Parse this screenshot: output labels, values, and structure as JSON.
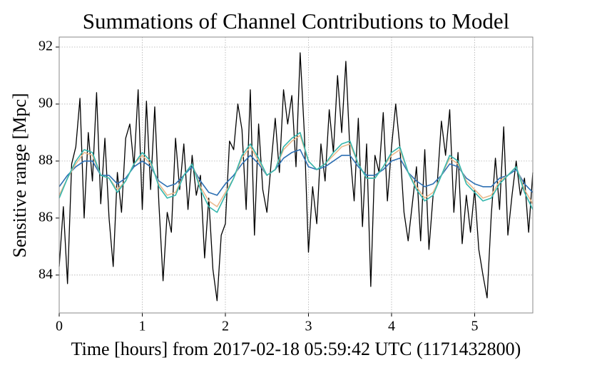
{
  "chart_data": {
    "type": "line",
    "title": "Summations of Channel Contributions to Model",
    "xlabel": "Time [hours] from 2017-02-18 05:59:42 UTC (1171432800)",
    "ylabel": "Sensitive range [Mpc]",
    "xlim": [
      0,
      5.7
    ],
    "ylim": [
      82.67,
      92.35
    ],
    "xticks": [
      0,
      1,
      2,
      3,
      4,
      5
    ],
    "yticks": [
      84,
      86,
      88,
      90,
      92
    ],
    "grid": true,
    "series": [
      {
        "color": "#000000",
        "x": [
          0,
          0.05,
          0.1,
          0.15,
          0.2,
          0.25,
          0.3,
          0.35,
          0.4,
          0.45,
          0.5,
          0.55,
          0.6,
          0.65,
          0.7,
          0.75,
          0.8,
          0.85,
          0.9,
          0.95,
          1,
          1.05,
          1.1,
          1.15,
          1.2,
          1.25,
          1.3,
          1.35,
          1.4,
          1.45,
          1.5,
          1.55,
          1.6,
          1.65,
          1.7,
          1.75,
          1.8,
          1.85,
          1.9,
          1.95,
          2,
          2.05,
          2.1,
          2.15,
          2.2,
          2.25,
          2.3,
          2.35,
          2.4,
          2.45,
          2.5,
          2.55,
          2.6,
          2.65,
          2.7,
          2.75,
          2.8,
          2.85,
          2.9,
          2.95,
          3,
          3.05,
          3.1,
          3.15,
          3.2,
          3.25,
          3.3,
          3.35,
          3.4,
          3.45,
          3.5,
          3.55,
          3.6,
          3.65,
          3.7,
          3.75,
          3.8,
          3.85,
          3.9,
          3.95,
          4,
          4.05,
          4.1,
          4.15,
          4.2,
          4.25,
          4.3,
          4.35,
          4.4,
          4.45,
          4.5,
          4.55,
          4.6,
          4.65,
          4.7,
          4.75,
          4.8,
          4.85,
          4.9,
          4.95,
          5,
          5.05,
          5.1,
          5.15,
          5.2,
          5.25,
          5.3,
          5.35,
          5.4,
          5.45,
          5.5,
          5.55,
          5.6,
          5.65,
          5.7
        ],
        "values": [
          84.3,
          86.4,
          83.7,
          87.9,
          88.5,
          90.2,
          86.0,
          89.0,
          87.3,
          90.4,
          86.5,
          88.8,
          86.0,
          84.3,
          87.6,
          86.2,
          88.8,
          89.3,
          87.8,
          90.5,
          86.3,
          90.1,
          87.0,
          89.9,
          86.5,
          83.8,
          86.2,
          85.5,
          88.8,
          87.0,
          88.6,
          86.3,
          88.2,
          86.8,
          87.5,
          84.6,
          86.7,
          84.2,
          83.1,
          85.4,
          85.8,
          88.7,
          88.4,
          90.0,
          89.1,
          86.3,
          90.5,
          85.4,
          89.3,
          87.0,
          86.2,
          87.9,
          89.5,
          87.6,
          90.5,
          89.3,
          90.3,
          87.8,
          91.8,
          89.0,
          84.8,
          87.1,
          85.8,
          88.6,
          87.3,
          89.8,
          88.3,
          91.0,
          89.0,
          91.5,
          88.3,
          86.6,
          89.5,
          85.7,
          88.6,
          83.6,
          88.2,
          87.6,
          89.7,
          86.6,
          88.5,
          90.0,
          88.5,
          86.2,
          85.2,
          86.5,
          87.8,
          85.2,
          88.4,
          84.9,
          86.8,
          87.2,
          89.4,
          88.2,
          89.8,
          86.2,
          88.3,
          85.1,
          86.8,
          85.5,
          87.0,
          84.9,
          84.0,
          83.2,
          86.1,
          88.1,
          86.3,
          89.2,
          85.4,
          86.8,
          88.0,
          86.8,
          87.4,
          85.5,
          87.6
        ]
      },
      {
        "color": "#2c6fb3",
        "x": [
          0,
          0.1,
          0.2,
          0.3,
          0.4,
          0.5,
          0.6,
          0.7,
          0.8,
          0.9,
          1,
          1.1,
          1.2,
          1.3,
          1.4,
          1.5,
          1.6,
          1.7,
          1.8,
          1.9,
          2,
          2.1,
          2.2,
          2.3,
          2.4,
          2.5,
          2.6,
          2.7,
          2.8,
          2.9,
          3,
          3.1,
          3.2,
          3.3,
          3.4,
          3.5,
          3.6,
          3.7,
          3.8,
          3.9,
          4,
          4.1,
          4.2,
          4.3,
          4.4,
          4.5,
          4.6,
          4.7,
          4.8,
          4.9,
          5,
          5.1,
          5.2,
          5.3,
          5.4,
          5.5,
          5.6,
          5.7
        ],
        "values": [
          87.1,
          87.5,
          87.8,
          88.0,
          88.0,
          87.5,
          87.5,
          87.2,
          87.4,
          87.8,
          88.0,
          87.8,
          87.3,
          87.1,
          87.2,
          87.5,
          87.8,
          87.3,
          86.9,
          86.8,
          87.2,
          87.5,
          87.9,
          88.2,
          87.9,
          87.5,
          87.7,
          88.1,
          88.3,
          88.4,
          87.8,
          87.7,
          87.8,
          88.0,
          88.2,
          88.2,
          87.8,
          87.5,
          87.5,
          87.7,
          88.0,
          88.1,
          87.6,
          87.3,
          87.1,
          87.2,
          87.5,
          87.9,
          87.8,
          87.4,
          87.2,
          87.1,
          87.1,
          87.4,
          87.5,
          87.7,
          87.2,
          86.9
        ]
      },
      {
        "color": "#e9b98c",
        "x": [
          0,
          0.1,
          0.2,
          0.3,
          0.4,
          0.5,
          0.6,
          0.7,
          0.8,
          0.9,
          1,
          1.1,
          1.2,
          1.3,
          1.4,
          1.5,
          1.6,
          1.7,
          1.8,
          1.9,
          2,
          2.1,
          2.2,
          2.3,
          2.4,
          2.5,
          2.6,
          2.7,
          2.8,
          2.9,
          3,
          3.1,
          3.2,
          3.3,
          3.4,
          3.5,
          3.6,
          3.7,
          3.8,
          3.9,
          4,
          4.1,
          4.2,
          4.3,
          4.4,
          4.5,
          4.6,
          4.7,
          4.8,
          4.9,
          5,
          5.1,
          5.2,
          5.3,
          5.4,
          5.5,
          5.6,
          5.7
        ],
        "values": [
          86.8,
          87.4,
          87.9,
          88.3,
          88.2,
          87.5,
          87.4,
          87.0,
          87.3,
          87.9,
          88.2,
          87.9,
          87.2,
          86.8,
          86.9,
          87.5,
          87.9,
          87.1,
          86.6,
          86.4,
          86.9,
          87.4,
          88.1,
          88.5,
          88.0,
          87.5,
          87.7,
          88.4,
          88.7,
          88.9,
          88.0,
          87.7,
          87.9,
          88.2,
          88.5,
          88.6,
          87.9,
          87.4,
          87.4,
          87.8,
          88.2,
          88.4,
          87.6,
          87.1,
          86.7,
          86.9,
          87.5,
          88.1,
          87.9,
          87.3,
          87.0,
          86.7,
          86.8,
          87.3,
          87.5,
          87.8,
          87.0,
          86.5
        ]
      },
      {
        "color": "#35b7ae",
        "x": [
          0,
          0.1,
          0.2,
          0.3,
          0.4,
          0.5,
          0.6,
          0.7,
          0.8,
          0.9,
          1,
          1.1,
          1.2,
          1.3,
          1.4,
          1.5,
          1.6,
          1.7,
          1.8,
          1.9,
          2,
          2.1,
          2.2,
          2.3,
          2.4,
          2.5,
          2.6,
          2.7,
          2.8,
          2.9,
          3,
          3.1,
          3.2,
          3.3,
          3.4,
          3.5,
          3.6,
          3.7,
          3.8,
          3.9,
          4,
          4.1,
          4.2,
          4.3,
          4.4,
          4.5,
          4.6,
          4.7,
          4.8,
          4.9,
          5,
          5.1,
          5.2,
          5.3,
          5.4,
          5.5,
          5.6,
          5.7
        ],
        "values": [
          86.7,
          87.4,
          88.0,
          88.4,
          88.3,
          87.5,
          87.4,
          86.9,
          87.3,
          87.9,
          88.3,
          88.0,
          87.1,
          86.7,
          86.8,
          87.5,
          87.9,
          87.0,
          86.4,
          86.2,
          86.8,
          87.4,
          88.2,
          88.6,
          88.1,
          87.5,
          87.7,
          88.5,
          88.8,
          89.0,
          88.0,
          87.7,
          87.9,
          88.3,
          88.6,
          88.7,
          87.9,
          87.4,
          87.4,
          87.8,
          88.3,
          88.5,
          87.6,
          87.0,
          86.6,
          86.8,
          87.5,
          88.2,
          88.0,
          87.2,
          86.9,
          86.6,
          86.7,
          87.2,
          87.5,
          87.8,
          86.9,
          86.3
        ]
      }
    ]
  }
}
